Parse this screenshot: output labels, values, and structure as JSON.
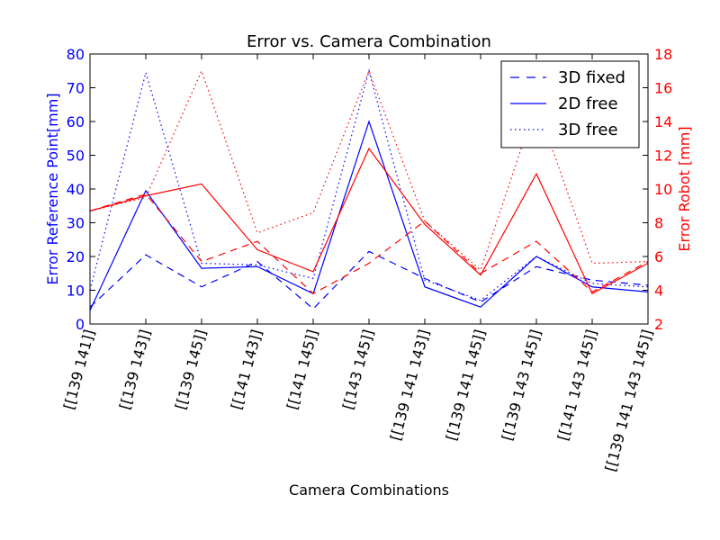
{
  "chart_data": {
    "type": "line",
    "title": "Error vs. Camera Combination",
    "xlabel": "Camera Combinations",
    "ylabel_left": "Error Reference Point[mm]",
    "ylabel_right": "Error Robot [mm]",
    "ylim_left": [
      0,
      80
    ],
    "ylim_right": [
      2,
      18
    ],
    "yticks_left": [
      "0",
      "10",
      "20",
      "30",
      "40",
      "50",
      "60",
      "70",
      "80"
    ],
    "yticks_right": [
      "2",
      "4",
      "6",
      "8",
      "10",
      "12",
      "14",
      "16",
      "18"
    ],
    "categories": [
      "[[139 141]]",
      "[[139 143]]",
      "[[139 145]]",
      "[[141 143]]",
      "[[141 145]]",
      "[[143 145]]",
      "[[139 141 143]]",
      "[[139 141 145]]",
      "[[139 143 145]]",
      "[[141 143 145]]",
      "[[139 141 143 145]]"
    ],
    "legend_position": "top-right",
    "grid": false,
    "series": [
      {
        "name": "3D fixed",
        "axis": "left",
        "color": "#0000ff",
        "style": "dashed",
        "values": [
          5,
          20.5,
          11,
          18.5,
          4.5,
          21.5,
          13.5,
          6.5,
          17,
          13,
          11.5
        ]
      },
      {
        "name": "2D free",
        "axis": "left",
        "color": "#0000ff",
        "style": "solid",
        "values": [
          4,
          39.5,
          16.5,
          17,
          9,
          60,
          11,
          5,
          20,
          11,
          9.5
        ]
      },
      {
        "name": "3D free",
        "axis": "left",
        "color": "#0000ff",
        "style": "dotted",
        "values": [
          10,
          74.5,
          18,
          17.5,
          13.5,
          75,
          13,
          7,
          20,
          12,
          11
        ]
      },
      {
        "axis": "right",
        "color": "#ff0000",
        "style": "dashed",
        "values": [
          8.7,
          9.7,
          5.7,
          6.9,
          3.8,
          5.6,
          8.1,
          5,
          6.9,
          3.9,
          5.7
        ]
      },
      {
        "axis": "right",
        "color": "#ff0000",
        "style": "solid",
        "values": [
          8.7,
          9.6,
          10.3,
          6.4,
          5.1,
          12.4,
          7.9,
          4.9,
          10.9,
          3.8,
          5.6
        ]
      },
      {
        "axis": "right",
        "color": "#ff0000",
        "style": "dotted",
        "values": [
          8.7,
          9.5,
          17,
          7.4,
          8.6,
          17,
          8.1,
          5.2,
          15.1,
          5.6,
          5.7
        ]
      }
    ]
  }
}
